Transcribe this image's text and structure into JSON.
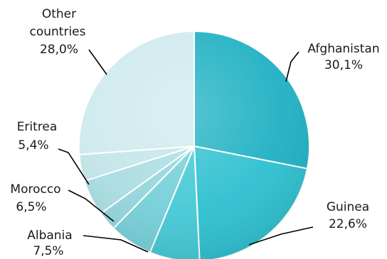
{
  "chart_data": {
    "type": "pie",
    "title": "",
    "slices": [
      {
        "label": "Afghanistan",
        "value_label": "30,1%",
        "value": 30.1,
        "color": "#1fb1c3"
      },
      {
        "label": "Guinea",
        "value_label": "22,6%",
        "value": 22.6,
        "color": "#2ec0d0"
      },
      {
        "label": "Albania",
        "value_label": "7,5%",
        "value": 7.5,
        "color": "#45c8d6"
      },
      {
        "label": "Morocco",
        "value_label": "6,5%",
        "value": 6.5,
        "color": "#76cfd8"
      },
      {
        "label": "",
        "value_label": "",
        "value": 2.9,
        "color": "#93d5dc"
      },
      {
        "label": "Eritrea",
        "value_label": "5,4%",
        "value": 5.4,
        "color": "#a9dde2"
      },
      {
        "label": "",
        "value_label": "",
        "value": 4.0,
        "color": "#c3e5e9"
      },
      {
        "label": "Other countries",
        "value_label": "28,0%",
        "value": 28.0,
        "color": "#cfeaed"
      }
    ],
    "start_angle_deg": 0,
    "direction": "clockwise",
    "legend": "none"
  }
}
